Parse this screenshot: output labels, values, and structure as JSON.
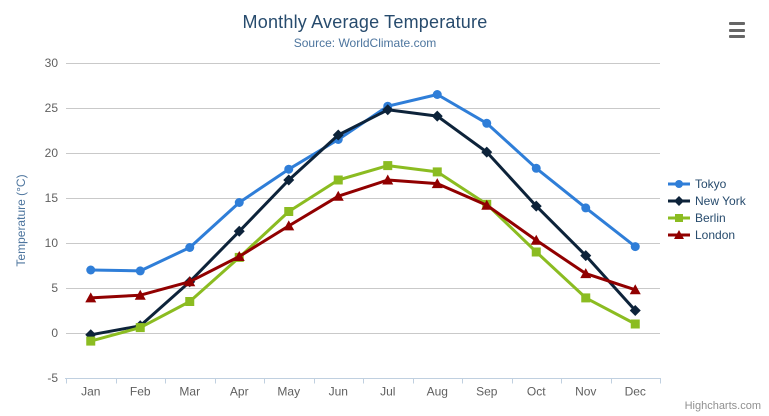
{
  "chart_data": {
    "type": "line",
    "title": "Monthly Average Temperature",
    "subtitle": "Source: WorldClimate.com",
    "categories": [
      "Jan",
      "Feb",
      "Mar",
      "Apr",
      "May",
      "Jun",
      "Jul",
      "Aug",
      "Sep",
      "Oct",
      "Nov",
      "Dec"
    ],
    "xlabel": "",
    "ylabel": "Temperature (°C)",
    "ylim": [
      -5,
      30
    ],
    "ytick_interval": 5,
    "yticks": [
      -5,
      0,
      5,
      10,
      15,
      20,
      25,
      30
    ],
    "grid": true,
    "legend_position": "right",
    "series": [
      {
        "name": "Tokyo",
        "color": "#2f7ed8",
        "marker": "circle",
        "values": [
          7.0,
          6.9,
          9.5,
          14.5,
          18.2,
          21.5,
          25.2,
          26.5,
          23.3,
          18.3,
          13.9,
          9.6
        ]
      },
      {
        "name": "New York",
        "color": "#0d233a",
        "marker": "diamond",
        "values": [
          -0.2,
          0.8,
          5.7,
          11.3,
          17.0,
          22.0,
          24.8,
          24.1,
          20.1,
          14.1,
          8.6,
          2.5
        ]
      },
      {
        "name": "Berlin",
        "color": "#8bbc21",
        "marker": "square",
        "values": [
          -0.9,
          0.6,
          3.5,
          8.4,
          13.5,
          17.0,
          18.6,
          17.9,
          14.3,
          9.0,
          3.9,
          1.0
        ]
      },
      {
        "name": "London",
        "color": "#910000",
        "marker": "triangle",
        "values": [
          3.9,
          4.2,
          5.7,
          8.5,
          11.9,
          15.2,
          17.0,
          16.6,
          14.2,
          10.3,
          6.6,
          4.8
        ]
      }
    ],
    "credit": "Highcharts.com",
    "colors": {
      "grid": "#c9c9c9",
      "axis_line": "#c0d0e0",
      "axis_label": "#606060",
      "axis_title": "#4d759e",
      "title": "#274b6d",
      "subtitle": "#4d759e",
      "legend_text": "#274b6d",
      "menu_icon": "#666666",
      "credit_text": "#909090"
    }
  },
  "controls": {
    "menu_icon_name": "hamburger-menu-icon"
  }
}
